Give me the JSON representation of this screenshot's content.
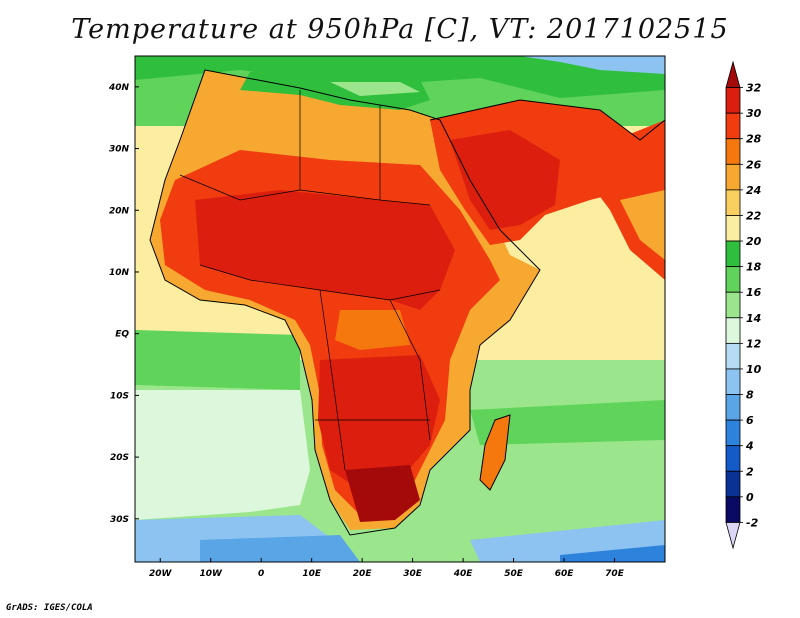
{
  "title": "Temperature at 950hPa [C], VT: 2017102515",
  "footer": "GrADS: IGES/COLA",
  "map": {
    "variable": "Temperature at 950hPa",
    "units": "C",
    "valid_time": "2017102515",
    "lon_range": [
      -25,
      80
    ],
    "lat_range": [
      -37,
      45
    ],
    "x_tick_labels": [
      "20W",
      "10W",
      "0",
      "10E",
      "20E",
      "30E",
      "40E",
      "50E",
      "60E",
      "70E"
    ],
    "y_tick_labels": [
      "40N",
      "30N",
      "20N",
      "10N",
      "EQ",
      "10S",
      "20S",
      "30S"
    ]
  },
  "colorbar": {
    "levels": [
      "32",
      "30",
      "28",
      "26",
      "24",
      "22",
      "20",
      "18",
      "16",
      "14",
      "12",
      "10",
      "8",
      "6",
      "4",
      "2",
      "0",
      "-2"
    ],
    "colors": [
      "#a50a0a",
      "#dc1e0f",
      "#f03c0f",
      "#f5780f",
      "#f7a830",
      "#f9d060",
      "#fbeea0",
      "#2fbf3c",
      "#5fd35a",
      "#9be68c",
      "#dcf7dc",
      "#b6dcf5",
      "#8cc3f0",
      "#5aa5e6",
      "#2d82dc",
      "#145ac8",
      "#0a3296",
      "#0a0a64",
      "#dcd7f5"
    ]
  }
}
